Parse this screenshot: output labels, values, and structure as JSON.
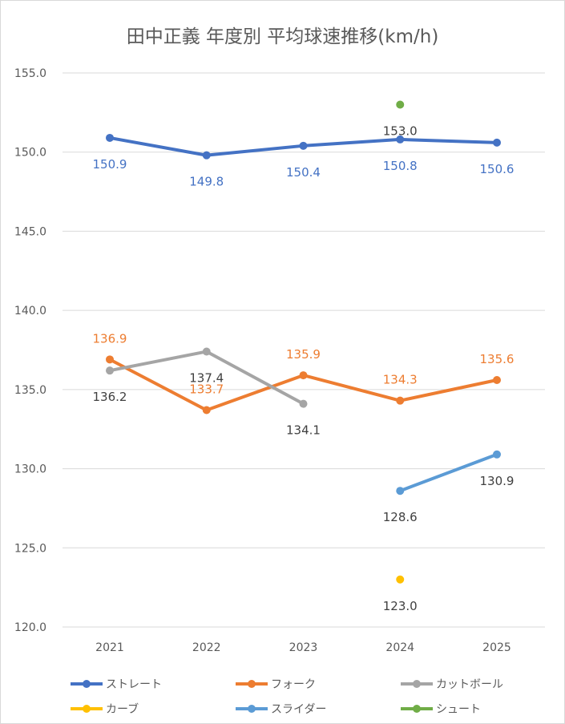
{
  "chart_data": {
    "type": "line",
    "title": "田中正義 年度別 平均球速推移(km/h)",
    "xlabel": "",
    "ylabel": "",
    "categories": [
      "2021",
      "2022",
      "2023",
      "2024",
      "2025"
    ],
    "ylim": [
      120,
      155
    ],
    "yticks": [
      "120.0",
      "125.0",
      "130.0",
      "135.0",
      "140.0",
      "145.0",
      "150.0",
      "155.0"
    ],
    "grid": true,
    "legend_position": "bottom",
    "series": [
      {
        "name": "ストレート",
        "color": "#4472C4",
        "label_color": "#4472C4",
        "label_pos": "below",
        "values": [
          150.9,
          149.8,
          150.4,
          150.8,
          150.6
        ]
      },
      {
        "name": "フォーク",
        "color": "#ED7D31",
        "label_color": "#ED7D31",
        "label_pos": "above",
        "values": [
          136.9,
          133.7,
          135.9,
          134.3,
          135.6
        ]
      },
      {
        "name": "カットボール",
        "color": "#A5A5A5",
        "label_color": "#404040",
        "label_pos": "below",
        "values": [
          136.2,
          137.4,
          134.1,
          null,
          null
        ]
      },
      {
        "name": "カーブ",
        "color": "#FFC000",
        "label_color": "#404040",
        "label_pos": "below",
        "values": [
          null,
          null,
          null,
          123.0,
          null
        ]
      },
      {
        "name": "スライダー",
        "color": "#5B9BD5",
        "label_color": "#404040",
        "label_pos": "below",
        "values": [
          null,
          null,
          null,
          128.6,
          130.9
        ]
      },
      {
        "name": "シュート",
        "color": "#70AD47",
        "label_color": "#404040",
        "label_pos": "below",
        "values": [
          null,
          null,
          null,
          153.0,
          null
        ]
      }
    ]
  }
}
